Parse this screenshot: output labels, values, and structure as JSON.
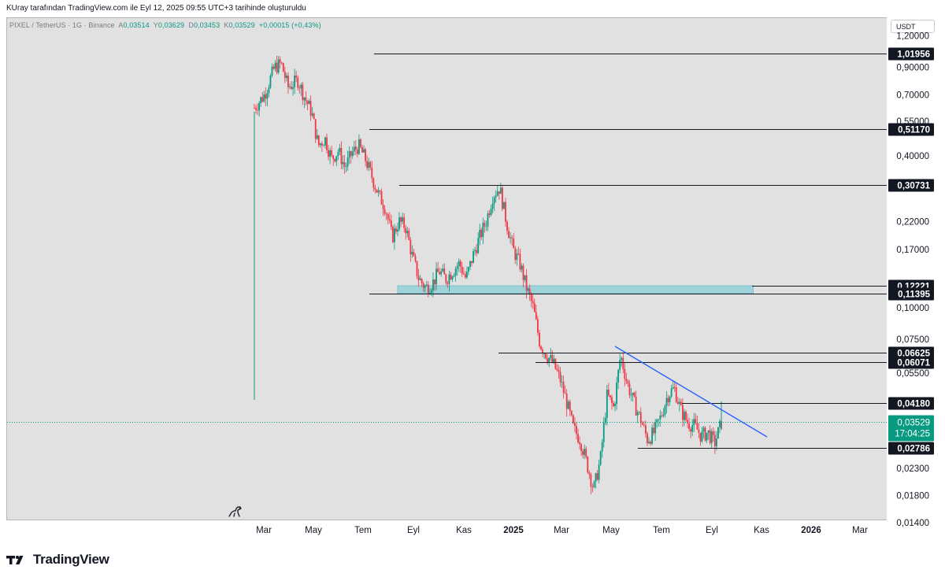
{
  "header": {
    "caption": "KUray tarafından TradingView.com ile Eyl 12, 2025 09:55 UTC+3 tarihinde oluşturuldu"
  },
  "legend": {
    "symbol": "PIXEL / TetherUS · 1G · Binance",
    "open_label": "A",
    "open": "0,03514",
    "high_label": "Y",
    "high": "0,03629",
    "low_label": "D",
    "low": "0,03453",
    "close_label": "K",
    "close": "0,03529",
    "change": "+0,00015 (+0,43%)"
  },
  "price_scale": {
    "currency": "USDT",
    "ticks": [
      "1,20000",
      "0,90000",
      "0,70000",
      "0,55000",
      "0,40000",
      "0,22000",
      "0,17000",
      "0,10000",
      "0,07500",
      "0,05500",
      "0,02300",
      "0,01800",
      "0,01400"
    ],
    "tick_values": [
      1.2,
      0.9,
      0.7,
      0.55,
      0.4,
      0.22,
      0.17,
      0.1,
      0.075,
      0.055,
      0.023,
      0.018,
      0.014
    ],
    "current_price": "0,03529",
    "countdown": "17:04:25"
  },
  "time_scale": {
    "labels": [
      "Mar",
      "May",
      "Tem",
      "Eyl",
      "Kas",
      "2025",
      "Mar",
      "May",
      "Tem",
      "Eyl",
      "Kas",
      "2026",
      "Mar"
    ]
  },
  "footer": {
    "brand": "TradingView"
  },
  "chart_data": {
    "type": "candlestick",
    "title": "PIXEL / TetherUS · 1G · Binance",
    "scale": "log",
    "ylim": [
      0.0125,
      1.42
    ],
    "x_range": [
      "2024-02",
      "2026-04"
    ],
    "current_price": 0.03529,
    "horizontal_levels": [
      {
        "value": 1.01956,
        "label": "1,01956",
        "from": "2024-08"
      },
      {
        "value": 0.5117,
        "label": "0,51170",
        "from": "2024-08"
      },
      {
        "value": 0.30731,
        "label": "0,30731",
        "from": "2024-09"
      },
      {
        "value": 0.12221,
        "label": "0,12221",
        "from": "2024-08"
      },
      {
        "value": 0.11395,
        "label": "0,11395",
        "from": "2024-08"
      },
      {
        "value": 0.06625,
        "label": "0,06625",
        "from": "2024-11"
      },
      {
        "value": 0.06071,
        "label": "0,06071",
        "from": "2025-01"
      },
      {
        "value": 0.0418,
        "label": "0,04180",
        "from": "2025-08"
      },
      {
        "value": 0.02786,
        "label": "0,02786",
        "from": "2025-06"
      }
    ],
    "zones": [
      {
        "from_price": 0.11395,
        "to_price": 0.12221,
        "from_date": "2024-08",
        "to_date": "2025-11",
        "color": "#9fd3da"
      }
    ],
    "trendlines": [
      {
        "from": {
          "x": "2025-05",
          "y": 0.0655
        },
        "to": {
          "x": "2025-10",
          "y": 0.0295
        },
        "color": "#2962ff"
      }
    ],
    "close_path": [
      [
        0,
        0.62
      ],
      [
        3,
        0.7
      ],
      [
        6,
        0.9
      ],
      [
        8,
        0.93
      ],
      [
        10,
        0.75
      ],
      [
        13,
        0.8
      ],
      [
        15,
        0.68
      ],
      [
        17,
        0.6
      ],
      [
        19,
        0.44
      ],
      [
        21,
        0.47
      ],
      [
        23,
        0.39
      ],
      [
        25,
        0.42
      ],
      [
        27,
        0.36
      ],
      [
        29,
        0.41
      ],
      [
        31,
        0.44
      ],
      [
        33,
        0.39
      ],
      [
        35,
        0.33
      ],
      [
        37,
        0.28
      ],
      [
        39,
        0.25
      ],
      [
        41,
        0.19
      ],
      [
        43,
        0.22
      ],
      [
        45,
        0.21
      ],
      [
        47,
        0.16
      ],
      [
        49,
        0.13
      ],
      [
        51,
        0.12
      ],
      [
        53,
        0.125
      ],
      [
        55,
        0.14
      ],
      [
        57,
        0.13
      ],
      [
        59,
        0.14
      ],
      [
        61,
        0.15
      ],
      [
        63,
        0.13
      ],
      [
        65,
        0.16
      ],
      [
        67,
        0.19
      ],
      [
        69,
        0.22
      ],
      [
        71,
        0.28
      ],
      [
        73,
        0.3
      ],
      [
        75,
        0.22
      ],
      [
        77,
        0.17
      ],
      [
        79,
        0.15
      ],
      [
        81,
        0.12
      ],
      [
        83,
        0.1
      ],
      [
        85,
        0.072
      ],
      [
        87,
        0.065
      ],
      [
        89,
        0.06
      ],
      [
        91,
        0.052
      ],
      [
        93,
        0.042
      ],
      [
        95,
        0.033
      ],
      [
        97,
        0.03
      ],
      [
        99,
        0.024
      ],
      [
        101,
        0.019
      ],
      [
        103,
        0.025
      ],
      [
        105,
        0.045
      ],
      [
        107,
        0.04
      ],
      [
        109,
        0.065
      ],
      [
        111,
        0.05
      ],
      [
        113,
        0.042
      ],
      [
        115,
        0.036
      ],
      [
        117,
        0.03
      ],
      [
        119,
        0.032
      ],
      [
        121,
        0.037
      ],
      [
        123,
        0.045
      ],
      [
        125,
        0.048
      ],
      [
        127,
        0.039
      ],
      [
        129,
        0.035
      ],
      [
        131,
        0.034
      ],
      [
        133,
        0.031
      ],
      [
        135,
        0.032
      ],
      [
        137,
        0.029
      ],
      [
        139,
        0.035
      ]
    ],
    "colors": {
      "up": "#089981",
      "down": "#f23645",
      "level": "#131722",
      "trend": "#2962ff"
    }
  }
}
